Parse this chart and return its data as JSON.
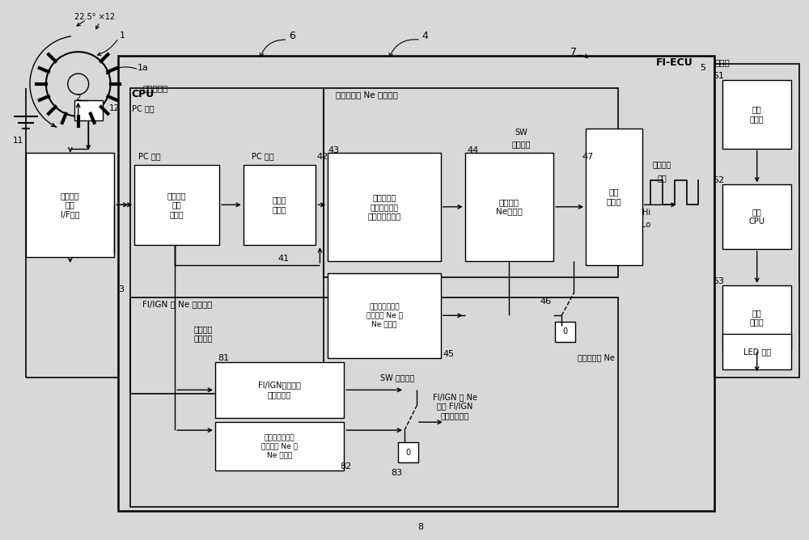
{
  "bg_color": "#d8d8d8",
  "line_color": "#000000",
  "box_fill": "#ffffff",
  "box_texts": {
    "if_circuit": "曲柄脉冲\n输入\nI/F电路",
    "crank_read": "曲柄脉冲\n读入\n处理部",
    "crank_level": "曲柄级\n判别部",
    "engine_stop_calc": "发动机停止\n判定曲柄脉冲\n间隔时间计算部",
    "meter_ne_select": "仪表发送\nNe选择部",
    "moving_avg_ne_upper": "通过移动平均值\n处理算出 Ne 的\nNe 计算部",
    "comms_driver": "通信\n驱动器",
    "fi_ign_engine_stop": "FI/IGN用发动机\n停止判定部",
    "fi_ign_ne_calc": "通过移动平均值\n处理算出 Ne 的\nNe 计算部",
    "meter_comms_driver": "通信\n驱动器",
    "meter_cpu": "仪表\nCPU",
    "display_driver": "显示\n驱动器",
    "led_display": "LED 显示",
    "crank_interval": "曲柄脉冲\n间隔时间"
  }
}
